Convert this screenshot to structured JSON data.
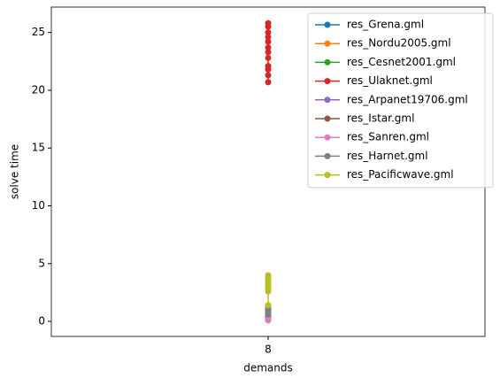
{
  "chart_data": {
    "type": "line",
    "xlabel": "demands",
    "ylabel": "solve time",
    "xlim": [
      7.95,
      8.05
    ],
    "xticks": [
      8
    ],
    "ylim": [
      -1.3,
      27.2
    ],
    "yticks": [
      0,
      5,
      10,
      15,
      20,
      25
    ],
    "legend": "upper right",
    "series": [
      {
        "name": "res_Grena.gml",
        "color": "#1f77b4",
        "x": [
          8,
          8
        ],
        "values": [
          0.2,
          0.5
        ]
      },
      {
        "name": "res_Nordu2005.gml",
        "color": "#ff7f0e",
        "x": [
          8,
          8
        ],
        "values": [
          0.1,
          0.3
        ]
      },
      {
        "name": "res_Cesnet2001.gml",
        "color": "#2ca02c",
        "x": [
          8,
          8
        ],
        "values": [
          0.2,
          0.4
        ]
      },
      {
        "name": "res_Ulaknet.gml",
        "color": "#d62728",
        "x": [
          8,
          8,
          8,
          8,
          8,
          8,
          8,
          8,
          8,
          8,
          8,
          8
        ],
        "values": [
          20.7,
          21.3,
          21.8,
          22.1,
          22.8,
          23.3,
          23.7,
          24.2,
          24.6,
          25.0,
          25.5,
          25.8
        ]
      },
      {
        "name": "res_Arpanet19706.gml",
        "color": "#9467bd",
        "x": [
          8,
          8
        ],
        "values": [
          0.3,
          0.6
        ]
      },
      {
        "name": "res_Istar.gml",
        "color": "#8c564b",
        "x": [
          8,
          8,
          8
        ],
        "values": [
          0.5,
          0.8,
          1.0
        ]
      },
      {
        "name": "res_Sanren.gml",
        "color": "#e377c2",
        "x": [
          8,
          8
        ],
        "values": [
          0.1,
          0.2
        ]
      },
      {
        "name": "res_Harnet.gml",
        "color": "#7f7f7f",
        "x": [
          8,
          8,
          8,
          8
        ],
        "values": [
          0.6,
          0.9,
          1.1,
          1.3
        ]
      },
      {
        "name": "res_Pacificwave.gml",
        "color": "#bcbd22",
        "x": [
          8,
          8,
          8,
          8,
          8,
          8,
          8,
          8,
          8
        ],
        "values": [
          1.4,
          2.6,
          2.8,
          3.0,
          3.2,
          3.4,
          3.6,
          3.8,
          4.0
        ]
      }
    ]
  }
}
